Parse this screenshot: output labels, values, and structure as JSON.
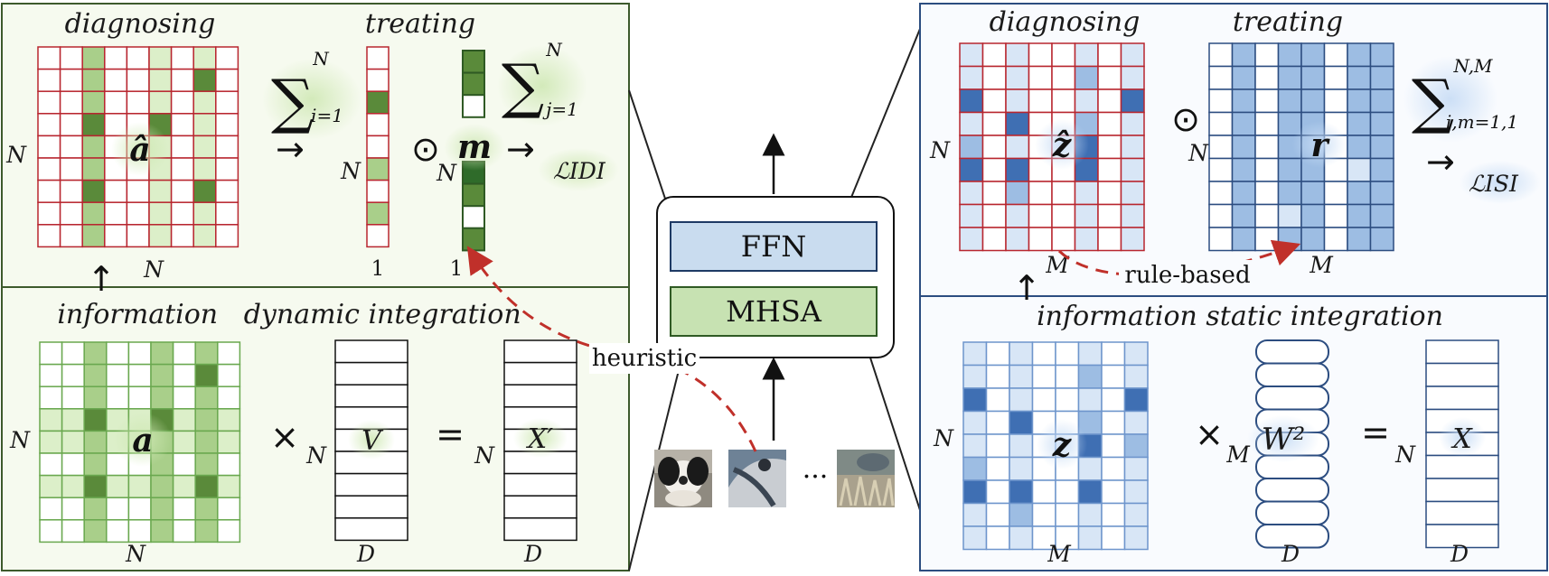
{
  "left_panel": {
    "top": {
      "title_diagnosing": "diagnosing",
      "title_treating": "treating",
      "matrix_symbol": "â",
      "row_label": "N",
      "col_label": "N",
      "sum_i_upper": "N",
      "sum_i_lower": "i=1",
      "vec_row_label": "N",
      "vec_col_label": "1",
      "mask_symbol": "m",
      "mask_row_label": "N",
      "mask_col_label": "1",
      "sum_j_upper": "N",
      "sum_j_lower": "j=1",
      "loss_label": "ℒIDI",
      "arrow_sym": "→",
      "odot_sym": "⊙"
    },
    "bottom": {
      "title": "information   dynamic integration",
      "matrix_symbol": "a",
      "row_label": "N",
      "col_label": "N",
      "times_sym": "×",
      "v_symbol": "V",
      "v_row_label": "N",
      "v_col_label": "D",
      "equals_sym": "=",
      "x_symbol": "X′",
      "x_row_label": "N",
      "x_col_label": "D"
    },
    "up_arrow": "↑"
  },
  "center": {
    "ffn_label": "FFN",
    "mhsa_label": "MHSA",
    "heuristic_label": "heuristic",
    "ellipsis": "···"
  },
  "right_panel": {
    "top": {
      "title_diagnosing": "diagnosing",
      "title_treating": "treating",
      "matrix_symbol": "ẑ",
      "row_label": "N",
      "col_label": "M",
      "odot_sym": "⊙",
      "r_symbol": "r",
      "r_row_label": "N",
      "r_col_label": "M",
      "sum_upper": "N,M",
      "sum_lower": "i,m=1,1",
      "loss_label": "ℒISI",
      "arrow_sym": "→",
      "rule_label": "rule-based"
    },
    "bottom": {
      "title": "information static integration",
      "matrix_symbol": "z",
      "row_label": "N",
      "col_label": "M",
      "times_sym": "×",
      "w_symbol": "W²",
      "w_row_label": "M",
      "w_col_label": "D",
      "equals_sym": "=",
      "x_symbol": "X",
      "x_row_label": "N",
      "x_col_label": "D"
    },
    "up_arrow": "↑"
  },
  "colors": {
    "green_dark": "#5a8a3a",
    "green_mid": "#a9cf8a",
    "green_light": "#dcefc9",
    "red_grid": "#b8262f",
    "blue_dark": "#3f6fb3",
    "blue_mid": "#9dbde3",
    "blue_light": "#d8e6f6",
    "navy": "#2c4d80",
    "dashed_red": "#c0302a"
  }
}
